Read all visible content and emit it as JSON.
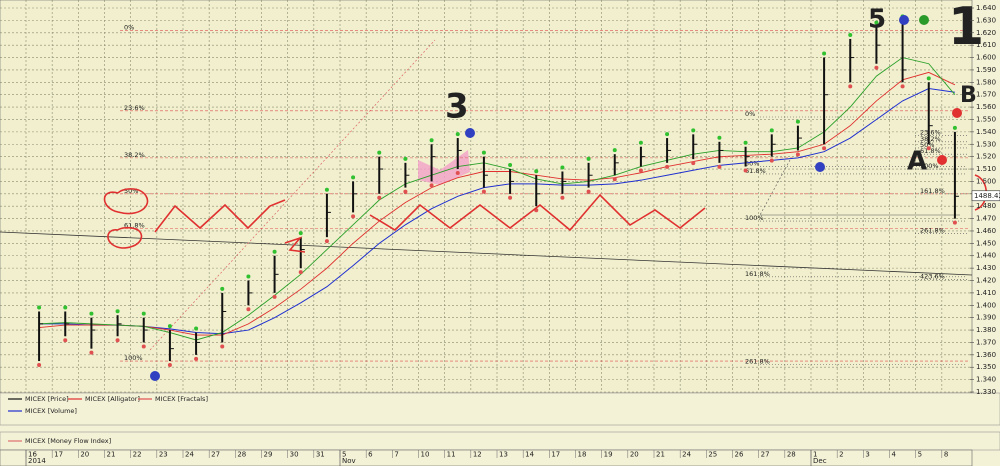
{
  "chart_data": {
    "type": "ohlc",
    "x_groups": [
      {
        "label": "2014",
        "categories": [
          "16",
          "17",
          "20",
          "21",
          "22",
          "23",
          "24",
          "27",
          "28",
          "29",
          "30",
          "31"
        ]
      },
      {
        "label": "Nov",
        "categories": [
          "5",
          "6",
          "7",
          "10",
          "11",
          "12",
          "13",
          "14",
          "17",
          "18",
          "19",
          "20",
          "21",
          "24",
          "25",
          "26",
          "27",
          "28"
        ]
      },
      {
        "label": "Dec",
        "categories": [
          "1",
          "2",
          "3",
          "4",
          "5",
          "8"
        ]
      }
    ],
    "price": {
      "name": "MICEX [Price]",
      "color": "#111111",
      "high": [
        1395,
        1395,
        1390,
        1392,
        1390,
        1380,
        1378,
        1410,
        1420,
        1440,
        1455,
        1490,
        1500,
        1520,
        1515,
        1530,
        1535,
        1520,
        1510,
        1505,
        1508,
        1515,
        1522,
        1528,
        1535,
        1538,
        1532,
        1528,
        1538,
        1545,
        1600,
        1615,
        1625,
        1630,
        1580,
        1540
      ],
      "low": [
        1355,
        1375,
        1365,
        1375,
        1370,
        1355,
        1360,
        1370,
        1400,
        1410,
        1430,
        1455,
        1475,
        1490,
        1495,
        1500,
        1510,
        1495,
        1490,
        1480,
        1490,
        1495,
        1505,
        1512,
        1515,
        1518,
        1515,
        1512,
        1520,
        1525,
        1530,
        1580,
        1595,
        1580,
        1530,
        1470
      ],
      "close": [
        1385,
        1385,
        1380,
        1385,
        1380,
        1365,
        1370,
        1395,
        1410,
        1425,
        1445,
        1475,
        1490,
        1510,
        1505,
        1520,
        1525,
        1505,
        1500,
        1490,
        1500,
        1505,
        1515,
        1520,
        1525,
        1530,
        1525,
        1520,
        1530,
        1535,
        1570,
        1600,
        1610,
        1590,
        1545,
        1488
      ]
    },
    "last_price": 1488.42,
    "alligator": {
      "name": "MICEX [Alligator]",
      "color": "#e03030",
      "lines": [
        {
          "color": "#e03030",
          "values": [
            1382,
            1384,
            1384,
            1384,
            1383,
            1380,
            1376,
            1376,
            1385,
            1398,
            1413,
            1430,
            1450,
            1468,
            1483,
            1495,
            1503,
            1508,
            1508,
            1505,
            1502,
            1501,
            1503,
            1507,
            1512,
            1516,
            1520,
            1521,
            1522,
            1524,
            1530,
            1545,
            1565,
            1582,
            1588,
            1578
          ]
        },
        {
          "color": "#2aa02a",
          "values": [
            1385,
            1386,
            1385,
            1384,
            1383,
            1378,
            1372,
            1378,
            1392,
            1408,
            1425,
            1445,
            1465,
            1485,
            1498,
            1505,
            1512,
            1515,
            1510,
            1502,
            1498,
            1500,
            1505,
            1512,
            1517,
            1522,
            1525,
            1524,
            1524,
            1527,
            1540,
            1560,
            1585,
            1600,
            1595,
            1570
          ]
        }
      ]
    },
    "fractals": {
      "name": "MICEX [Fractals]",
      "color": "#e05050",
      "up_color": "#30c030"
    },
    "volume": {
      "name": "MICEX [Volume]",
      "color": "#2030d0",
      "values": [
        1385,
        1385,
        1384,
        1384,
        1383,
        1381,
        1378,
        1377,
        1380,
        1390,
        1402,
        1415,
        1432,
        1450,
        1465,
        1478,
        1488,
        1495,
        1498,
        1498,
        1497,
        1497,
        1498,
        1501,
        1505,
        1509,
        1513,
        1515,
        1517,
        1519,
        1524,
        1535,
        1550,
        1565,
        1575,
        1572
      ]
    },
    "money_flow_index": {
      "name": "MICEX [Money Flow Index]",
      "color": "#e07070"
    },
    "ylim": [
      1330,
      1640
    ],
    "yticks": [
      {
        "value": 1330,
        "label": "1.330"
      },
      {
        "value": 1340,
        "label": "1.340"
      },
      {
        "value": 1350,
        "label": "1.350"
      },
      {
        "value": 1360,
        "label": "1.360"
      },
      {
        "value": 1370,
        "label": "1.370"
      },
      {
        "value": 1380,
        "label": "1.380"
      },
      {
        "value": 1390,
        "label": "1.390"
      },
      {
        "value": 1400,
        "label": "1.400"
      },
      {
        "value": 1410,
        "label": "1.410"
      },
      {
        "value": 1420,
        "label": "1.420"
      },
      {
        "value": 1430,
        "label": "1.430"
      },
      {
        "value": 1440,
        "label": "1.440"
      },
      {
        "value": 1450,
        "label": "1.450"
      },
      {
        "value": 1460,
        "label": "1.460"
      },
      {
        "value": 1470,
        "label": "1.470"
      },
      {
        "value": 1480,
        "label": "1.480"
      },
      {
        "value": 1490,
        "label": "1.490"
      },
      {
        "value": 1500,
        "label": "1.500"
      },
      {
        "value": 1510,
        "label": "1.510"
      },
      {
        "value": 1520,
        "label": "1.520"
      },
      {
        "value": 1530,
        "label": "1.530"
      },
      {
        "value": 1540,
        "label": "1.540"
      },
      {
        "value": 1550,
        "label": "1.550"
      },
      {
        "value": 1560,
        "label": "1.560"
      },
      {
        "value": 1570,
        "label": "1.570"
      },
      {
        "value": 1580,
        "label": "1.580"
      },
      {
        "value": 1590,
        "label": "1.590"
      },
      {
        "value": 1600,
        "label": "1.600"
      },
      {
        "value": 1610,
        "label": "1.610"
      },
      {
        "value": 1620,
        "label": "1.620"
      },
      {
        "value": 1630,
        "label": "1.630"
      },
      {
        "value": 1640,
        "label": "1.640"
      }
    ],
    "grid": true,
    "fibonacci": [
      {
        "color": "#e05050",
        "levels": [
          {
            "label": "0%",
            "value": 1622
          },
          {
            "label": "23.6%",
            "value": 1557
          },
          {
            "label": "38.2%",
            "value": 1519
          },
          {
            "label": "50%",
            "value": 1490
          },
          {
            "label": "61.8%",
            "value": 1462
          },
          {
            "label": "100%",
            "value": 1355
          }
        ]
      },
      {
        "color": "#555555",
        "levels": [
          {
            "label": "0%",
            "value": 1552
          },
          {
            "label": "50%",
            "value": 1512
          },
          {
            "label": "61.8%",
            "value": 1506
          },
          {
            "label": "100%",
            "value": 1468
          },
          {
            "label": "161.8%",
            "value": 1423
          },
          {
            "label": "261.8%",
            "value": 1352
          }
        ]
      },
      {
        "color": "#555555",
        "levels": [
          {
            "label": "23.6%",
            "value": 1537
          },
          {
            "label": "38.2%",
            "value": 1532
          },
          {
            "label": "50%",
            "value": 1527
          },
          {
            "label": "61.8%",
            "value": 1522
          },
          {
            "label": "100%",
            "value": 1510
          },
          {
            "label": "161.8%",
            "value": 1490
          },
          {
            "label": "261.8%",
            "value": 1458
          },
          {
            "label": "423.6%",
            "value": 1421
          }
        ]
      }
    ],
    "annotations": [
      {
        "text": "5",
        "color": "#3040c0"
      },
      {
        "text": "1",
        "color": "#2a9a2a"
      },
      {
        "text": "3",
        "color": "#3040c0"
      },
      {
        "text": "A",
        "color": "#e03030"
      },
      {
        "text": "B",
        "color": "#e03030"
      }
    ]
  }
}
